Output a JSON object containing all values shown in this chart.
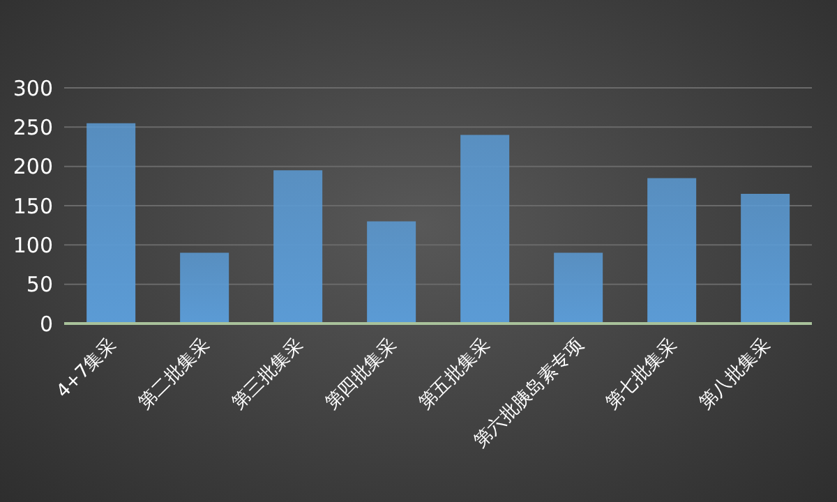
{
  "chart_data": {
    "type": "bar",
    "categories": [
      "4+7集采",
      "第二批集采",
      "第三批集采",
      "第四批集采",
      "第五批集采",
      "第六批胰岛素专项",
      "第七批集采",
      "第八批集采"
    ],
    "values": [
      255,
      90,
      195,
      130,
      240,
      90,
      185,
      165
    ],
    "color": "#5b9bd5",
    "ylim": [
      0,
      300
    ],
    "yticks": [
      0,
      50,
      100,
      150,
      200,
      250,
      300
    ],
    "grid": "y"
  }
}
